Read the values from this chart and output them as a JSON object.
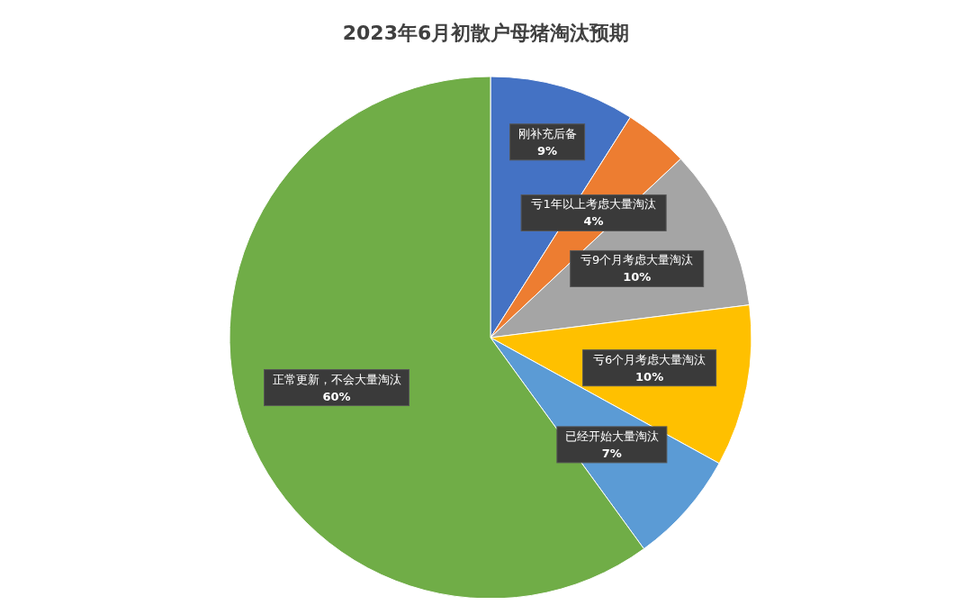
{
  "chart_data": {
    "type": "pie",
    "title": "2023年6月初散户母猪淘汰预期",
    "categories": [
      "刚补充后备",
      "亏1年以上考虑大量淘汰",
      "亏9个月考虑大量淘汰",
      "亏6个月考虑大量淘汰",
      "已经开始大量淘汰",
      "正常更新，不会大量淘汰"
    ],
    "values": [
      9,
      4,
      10,
      10,
      7,
      60
    ],
    "value_labels": [
      "9%",
      "4%",
      "10%",
      "10%",
      "7%",
      "60%"
    ],
    "colors": [
      "#4472c4",
      "#ed7d31",
      "#a5a5a5",
      "#ffc000",
      "#5b9bd5",
      "#70ad47"
    ],
    "legend": false
  }
}
